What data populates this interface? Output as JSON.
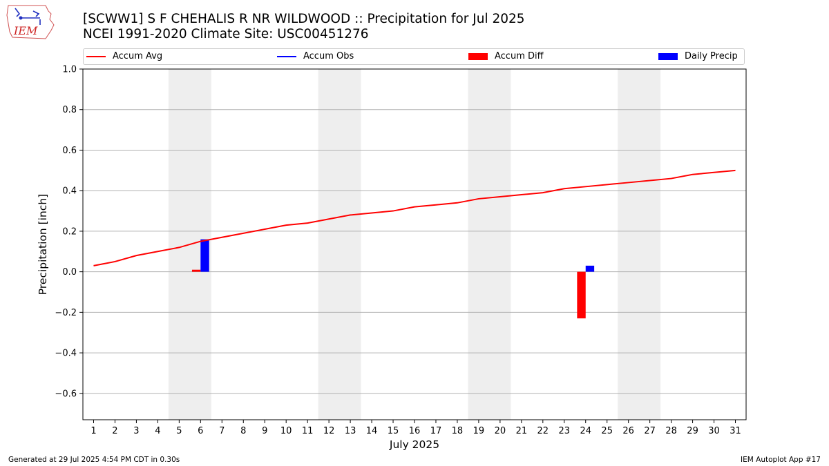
{
  "header": {
    "title_line1": "[SCWW1] S F CHEHALIS R NR WILDWOOD :: Precipitation for Jul 2025",
    "title_line2": "NCEI 1991-2020 Climate Site: USC00451276",
    "logo_text": "IEM"
  },
  "footer": {
    "generated": "Generated at 29 Jul 2025 4:54 PM CDT in 0.30s",
    "app": "IEM Autoplot App #17"
  },
  "colors": {
    "accum_avg": "#ff0000",
    "accum_obs": "#0000ff",
    "accum_diff": "#ff0000",
    "daily_precip": "#0000ff",
    "weekend_band": "#eeeeee",
    "grid": "#b0b0b0"
  },
  "chart_data": {
    "type": "bar",
    "xlabel": "July 2025",
    "ylabel": "Precipitation [inch]",
    "ylim": [
      -0.73,
      1.0
    ],
    "yticks": [
      -0.6,
      -0.4,
      -0.2,
      0.0,
      0.2,
      0.4,
      0.6,
      0.8,
      1.0
    ],
    "ytick_labels": [
      "−0.6",
      "−0.4",
      "−0.2",
      "0.0",
      "0.2",
      "0.4",
      "0.6",
      "0.8",
      "1.0"
    ],
    "grid": "horizontal",
    "legend_position": "top",
    "days": [
      1,
      2,
      3,
      4,
      5,
      6,
      7,
      8,
      9,
      10,
      11,
      12,
      13,
      14,
      15,
      16,
      17,
      18,
      19,
      20,
      21,
      22,
      23,
      24,
      25,
      26,
      27,
      28,
      29,
      30,
      31
    ],
    "weekend_day_pairs": [
      [
        5,
        6
      ],
      [
        12,
        13
      ],
      [
        19,
        20
      ],
      [
        26,
        27
      ]
    ],
    "series": [
      {
        "name": "Accum Avg",
        "kind": "line",
        "values": [
          0.03,
          0.05,
          0.08,
          0.1,
          0.12,
          0.15,
          0.17,
          0.19,
          0.21,
          0.23,
          0.24,
          0.26,
          0.28,
          0.29,
          0.3,
          0.32,
          0.33,
          0.34,
          0.36,
          0.37,
          0.38,
          0.39,
          0.41,
          0.42,
          0.43,
          0.44,
          0.45,
          0.46,
          0.48,
          0.49,
          0.5
        ]
      },
      {
        "name": "Accum Obs",
        "kind": "line",
        "values": []
      },
      {
        "name": "Accum Diff",
        "kind": "bar",
        "points": [
          {
            "day": 6,
            "value": 0.01
          },
          {
            "day": 24,
            "value": -0.23
          }
        ]
      },
      {
        "name": "Daily Precip",
        "kind": "bar",
        "points": [
          {
            "day": 6,
            "value": 0.16
          },
          {
            "day": 24,
            "value": 0.03
          }
        ]
      }
    ]
  }
}
